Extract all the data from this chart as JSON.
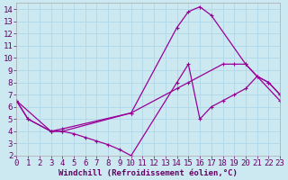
{
  "xlabel": "Windchill (Refroidissement éolien,°C)",
  "xlim": [
    0,
    23
  ],
  "ylim": [
    2,
    14.5
  ],
  "xticks": [
    0,
    1,
    2,
    3,
    4,
    5,
    6,
    7,
    8,
    9,
    10,
    11,
    12,
    13,
    14,
    15,
    16,
    17,
    18,
    19,
    20,
    21,
    22,
    23
  ],
  "yticks": [
    2,
    3,
    4,
    5,
    6,
    7,
    8,
    9,
    10,
    11,
    12,
    13,
    14
  ],
  "background_color": "#cce8f0",
  "grid_color": "#b0d8e8",
  "line_color": "#990099",
  "line1_x": [
    0,
    1,
    3,
    4,
    10,
    14,
    15,
    16,
    17,
    20,
    23
  ],
  "line1_y": [
    6.5,
    5.0,
    4.0,
    4.2,
    5.5,
    12.5,
    13.8,
    14.2,
    13.5,
    9.5,
    6.5
  ],
  "line2_x": [
    0,
    1,
    3,
    4,
    5,
    6,
    7,
    8,
    9,
    10,
    14,
    15,
    16,
    17,
    18,
    19,
    20,
    21,
    22,
    23
  ],
  "line2_y": [
    6.5,
    5.0,
    4.0,
    4.0,
    3.8,
    3.5,
    3.2,
    2.9,
    2.5,
    2.0,
    8.0,
    9.5,
    5.0,
    6.0,
    6.5,
    7.0,
    7.5,
    8.5,
    8.0,
    7.0
  ],
  "line3_x": [
    0,
    3,
    4,
    10,
    14,
    15,
    18,
    19,
    20,
    21,
    22,
    23
  ],
  "line3_y": [
    6.5,
    4.0,
    4.0,
    5.5,
    7.5,
    8.0,
    9.5,
    9.5,
    9.5,
    8.5,
    8.0,
    7.0
  ],
  "font_size": 6.5
}
